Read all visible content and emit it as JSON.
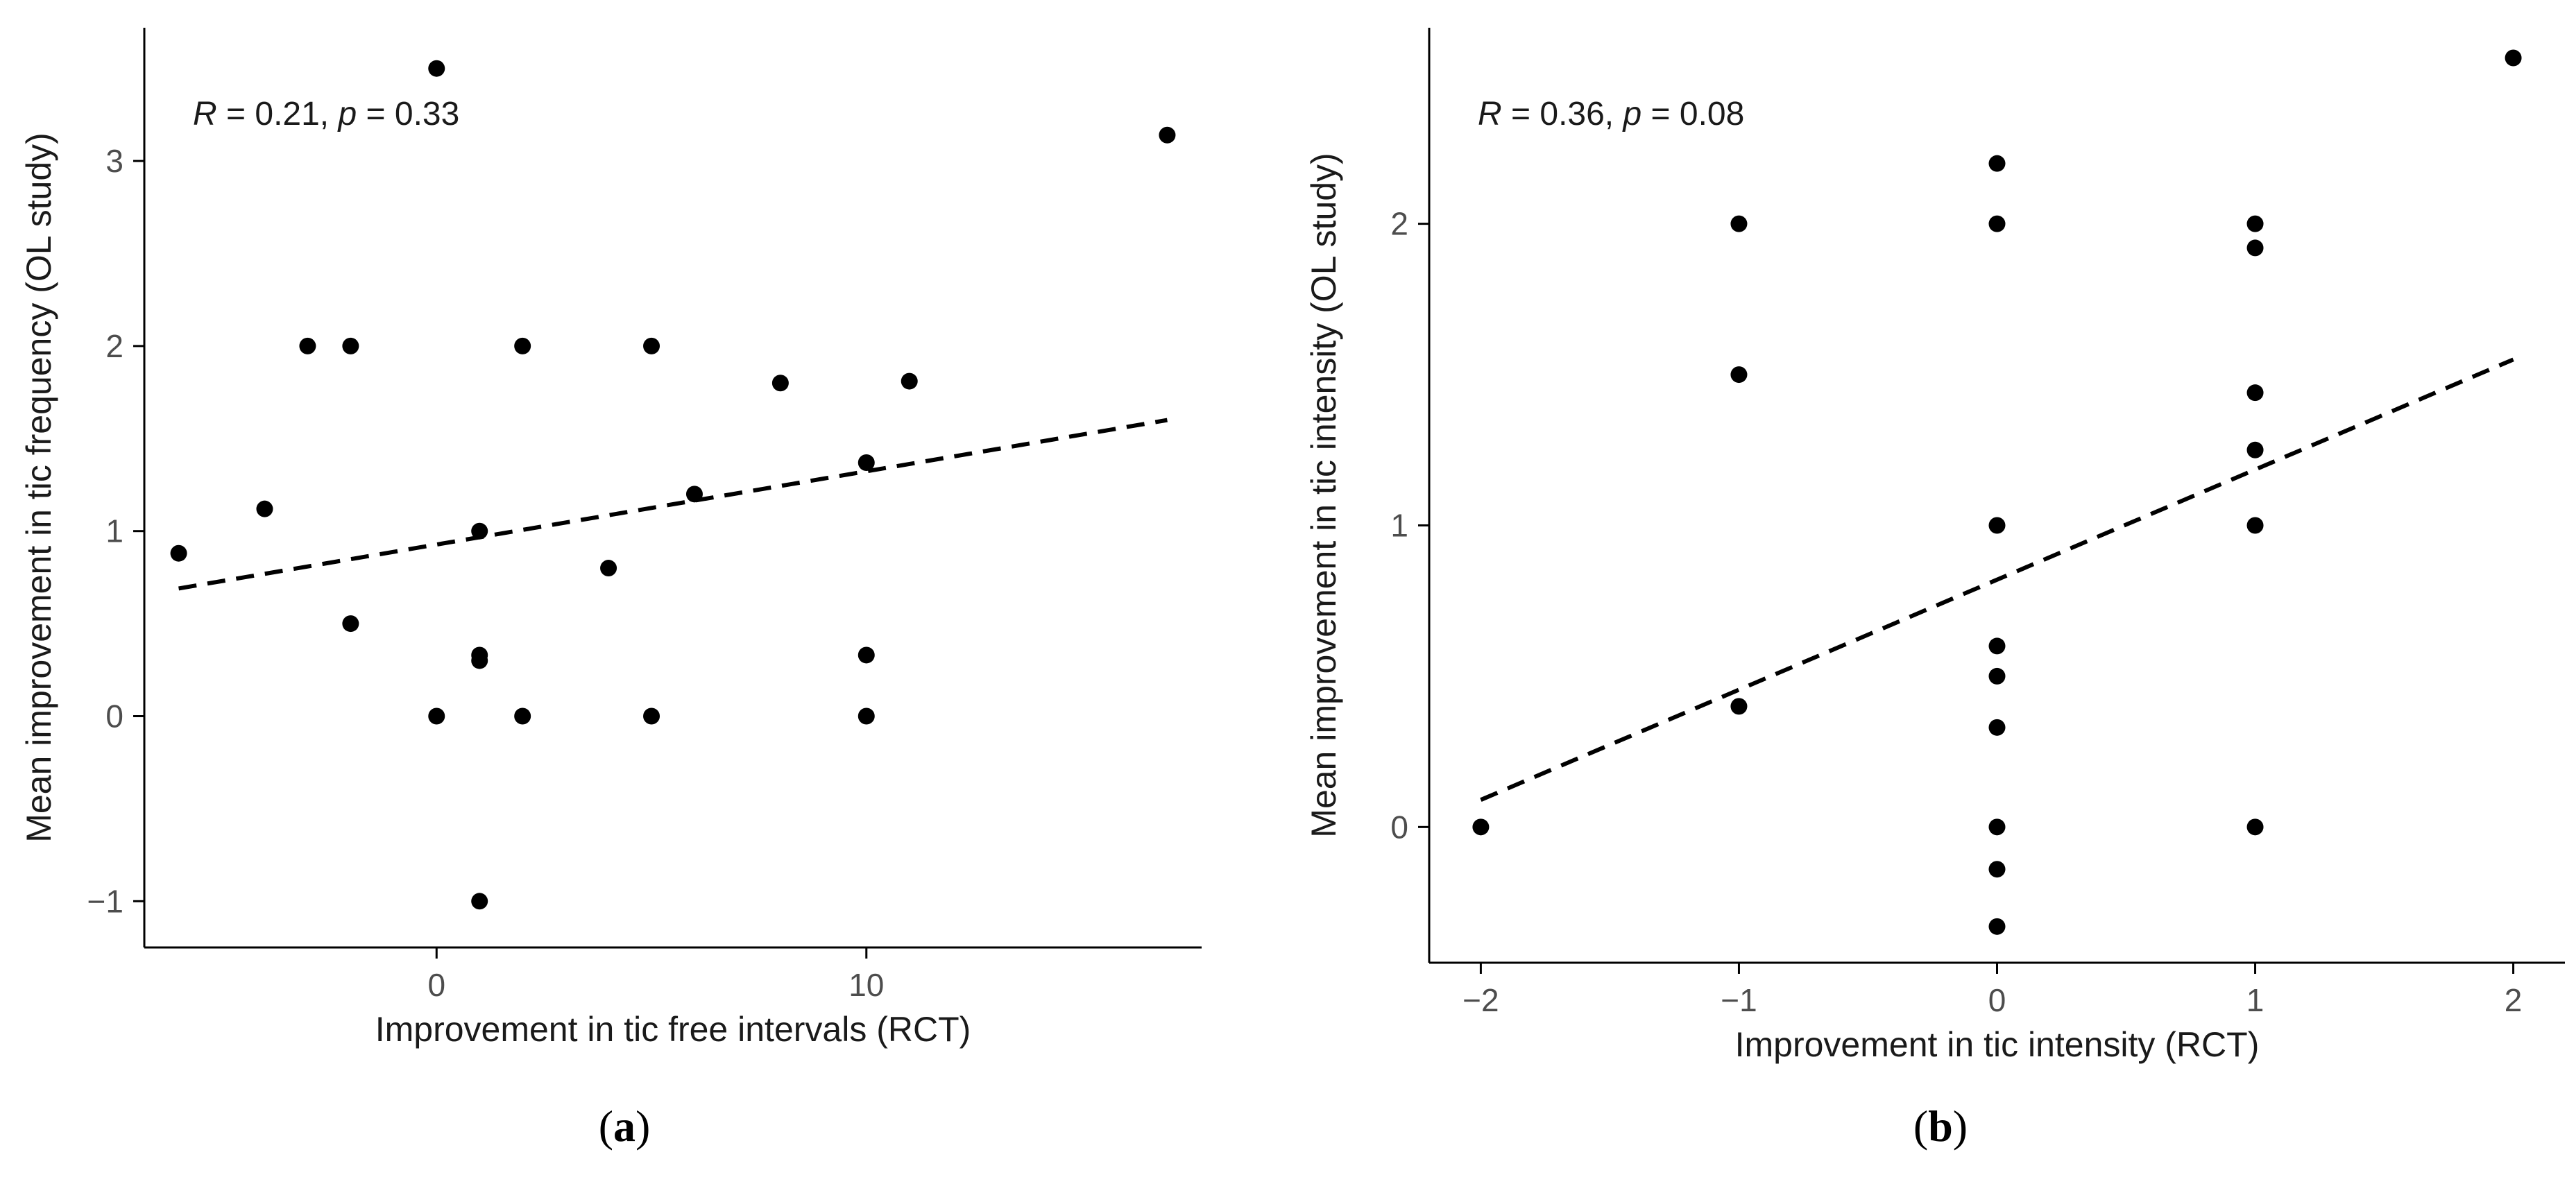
{
  "chart_data": [
    {
      "type": "scatter",
      "panel_label": "a",
      "xlabel": "Improvement in tic free intervals (RCT)",
      "ylabel": "Mean improvement in tic frequency (OL study)",
      "annotation": {
        "r_symbol": "R",
        "r_value": " = 0.21, ",
        "p_symbol": "p",
        "p_value": " = 0.33"
      },
      "xlim": [
        -6.8,
        17.8
      ],
      "ylim": [
        -1.25,
        3.72
      ],
      "x_ticks": [
        0,
        10
      ],
      "x_tick_labels": [
        "0",
        "10"
      ],
      "y_ticks": [
        -1,
        0,
        1,
        2,
        3
      ],
      "y_tick_labels": [
        "−1",
        "0",
        "1",
        "2",
        "3"
      ],
      "points": [
        {
          "x": -6,
          "y": 0.88
        },
        {
          "x": -4,
          "y": 1.12
        },
        {
          "x": -3,
          "y": 2.0
        },
        {
          "x": -2,
          "y": 2.0
        },
        {
          "x": -2,
          "y": 0.5
        },
        {
          "x": 0,
          "y": 3.5
        },
        {
          "x": 0,
          "y": 0.0
        },
        {
          "x": 1,
          "y": 1.0
        },
        {
          "x": 1,
          "y": 0.33
        },
        {
          "x": 1,
          "y": 0.3
        },
        {
          "x": 1,
          "y": -1.0
        },
        {
          "x": 2,
          "y": 2.0
        },
        {
          "x": 2,
          "y": 0.0
        },
        {
          "x": 4,
          "y": 0.8
        },
        {
          "x": 5,
          "y": 2.0
        },
        {
          "x": 5,
          "y": 0.0
        },
        {
          "x": 6,
          "y": 1.2
        },
        {
          "x": 8,
          "y": 1.8
        },
        {
          "x": 10,
          "y": 1.37
        },
        {
          "x": 10,
          "y": 0.33
        },
        {
          "x": 10,
          "y": 0.0
        },
        {
          "x": 11,
          "y": 1.81
        },
        {
          "x": 17,
          "y": 3.14
        }
      ],
      "fit_line": {
        "x": [
          -6,
          17
        ],
        "y": [
          0.69,
          1.6
        ],
        "style": "dashed"
      }
    },
    {
      "type": "scatter",
      "panel_label": "b",
      "xlabel": "Improvement in tic intensity (RCT)",
      "ylabel": "Mean improvement in tic intensity (OL study)",
      "annotation": {
        "r_symbol": "R",
        "r_value": " = 0.36, ",
        "p_symbol": "p",
        "p_value": " = 0.08"
      },
      "xlim": [
        -2.2,
        2.2
      ],
      "ylim": [
        -0.45,
        2.65
      ],
      "x_ticks": [
        -2,
        -1,
        0,
        1,
        2
      ],
      "x_tick_labels": [
        "−2",
        "−1",
        "0",
        "1",
        "2"
      ],
      "y_ticks": [
        0,
        1,
        2
      ],
      "y_tick_labels": [
        "0",
        "1",
        "2"
      ],
      "points": [
        {
          "x": -2,
          "y": 0.0
        },
        {
          "x": -1,
          "y": 2.0
        },
        {
          "x": -1,
          "y": 1.5
        },
        {
          "x": -1,
          "y": 0.4
        },
        {
          "x": 0,
          "y": 2.2
        },
        {
          "x": 0,
          "y": 2.0
        },
        {
          "x": 0,
          "y": 1.0
        },
        {
          "x": 0,
          "y": 0.6
        },
        {
          "x": 0,
          "y": 0.5
        },
        {
          "x": 0,
          "y": 0.33
        },
        {
          "x": 0,
          "y": 0.0
        },
        {
          "x": 0,
          "y": -0.14
        },
        {
          "x": 0,
          "y": -0.33
        },
        {
          "x": 1,
          "y": 2.0
        },
        {
          "x": 1,
          "y": 1.92
        },
        {
          "x": 1,
          "y": 1.44
        },
        {
          "x": 1,
          "y": 1.25
        },
        {
          "x": 1,
          "y": 1.0
        },
        {
          "x": 1,
          "y": 0.0
        },
        {
          "x": 2,
          "y": 2.55
        }
      ],
      "fit_line": {
        "x": [
          -2,
          2
        ],
        "y": [
          0.09,
          1.55
        ],
        "style": "dashed"
      }
    }
  ],
  "colors": {
    "background": "#ffffff",
    "ink": "#000000",
    "tick_text": "#4d4d4d",
    "axis_label_text": "#1a1a1a"
  }
}
